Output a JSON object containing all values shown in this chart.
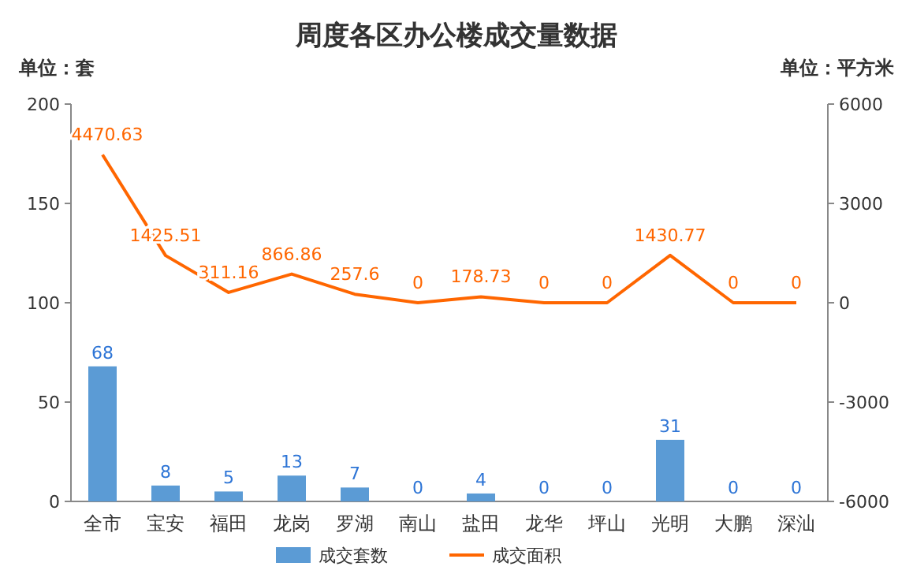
{
  "chart_data": {
    "type": "bar",
    "title": "周度各区办公楼成交量数据",
    "annotations": [
      "单位：套",
      "单位：平方米"
    ],
    "categories": [
      "全市",
      "宝安",
      "福田",
      "龙岗",
      "罗湖",
      "南山",
      "盐田",
      "龙华",
      "坪山",
      "光明",
      "大鹏",
      "深汕"
    ],
    "series": [
      {
        "name": "成交套数",
        "color": "#5b9bd5",
        "values": [
          68,
          8,
          5,
          13,
          7,
          0,
          4,
          0,
          0,
          31,
          0,
          0
        ]
      },
      {
        "name": "成交面积",
        "type": "line",
        "axis": "y2",
        "color": "#ff6600",
        "values": [
          4470.63,
          1425.51,
          311.16,
          866.86,
          257.6,
          0,
          178.73,
          0,
          0,
          1430.77,
          0,
          0
        ]
      }
    ],
    "ylim": [
      0,
      200
    ],
    "yticks": [
      0,
      50,
      100,
      150,
      200
    ],
    "y2lim": [
      -6000,
      6000
    ],
    "y2ticks": [
      -6000,
      -3000,
      0,
      3000,
      6000
    ],
    "data_labels": true,
    "legend": "bottom",
    "grid": false
  }
}
